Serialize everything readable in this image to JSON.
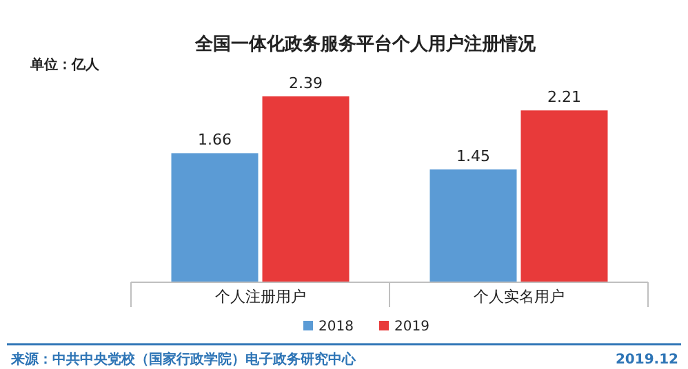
{
  "chart_data": {
    "type": "bar",
    "title": "全国一体化政务服务平台个人用户注册情况",
    "ylabel": "单位：亿人",
    "categories": [
      "个人注册用户",
      "个人实名用户"
    ],
    "series": [
      {
        "name": "2018",
        "color": "#5b9bd5",
        "values": [
          1.66,
          1.45
        ]
      },
      {
        "name": "2019",
        "color": "#e83a3a",
        "values": [
          2.39,
          2.21
        ]
      }
    ],
    "data_labels": true,
    "legend": "bottom",
    "annotations": [
      "来源：中共中央党校（国家行政学院）电子政务研究中心",
      "2019.12"
    ]
  }
}
